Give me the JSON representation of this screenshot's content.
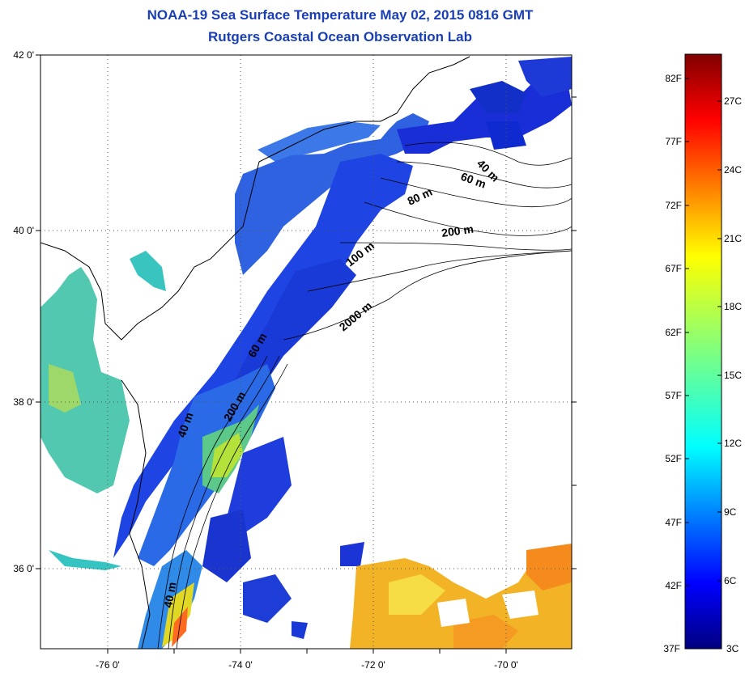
{
  "header": {
    "title": "NOAA-19 Sea Surface Temperature May 02, 2015 0816 GMT",
    "subtitle": "Rutgers Coastal Ocean Observation Lab"
  },
  "map": {
    "lat_labels": [
      "42 0'",
      "40 0'",
      "38 0'",
      "36 0'"
    ],
    "lon_labels": [
      "-76 0'",
      "-74 0'",
      "-72 0'",
      "-70 0'"
    ],
    "lat_range": [
      35,
      42
    ],
    "lon_range": [
      -77,
      -69
    ],
    "gridlines": "dotted",
    "contour_labels": [
      "40 m",
      "60 m",
      "80 m",
      "200 m",
      "100 m",
      "2000 m",
      "60 m",
      "200 m",
      "40 m",
      "40 m"
    ]
  },
  "colorbar": {
    "fahrenheit": [
      "82F",
      "77F",
      "72F",
      "67F",
      "62F",
      "57F",
      "52F",
      "47F",
      "42F",
      "37F"
    ],
    "celsius": [
      "27C",
      "24C",
      "21C",
      "18C",
      "15C",
      "12C",
      "9C",
      "6C",
      "3C"
    ],
    "colormap": "jet",
    "min_color": "#00007f",
    "max_color": "#7f0000"
  },
  "colors": {
    "title": "#1a3fb5",
    "land": "#ffffff",
    "contour": "#000000"
  }
}
